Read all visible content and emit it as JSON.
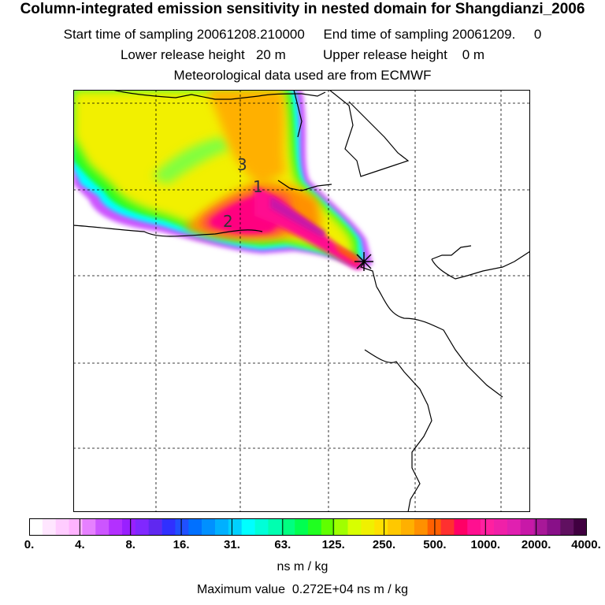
{
  "header": {
    "title": "Column-integrated emission sensitivity in nested domain for Shangdianzi_2006",
    "start_label": "Start time of sampling 20061208.210000",
    "end_label": "End time of sampling 20061209.     0",
    "lower_label": "Lower release height   20 m",
    "upper_label": "Upper release height    0 m",
    "met_label": "Meteorological data used are from ECMWF"
  },
  "map": {
    "release_marker": "cross-marker-icon",
    "position_labels": [
      "1",
      "2",
      "3"
    ]
  },
  "colorbar": {
    "tick_labels": [
      "0.",
      "4.",
      "8.",
      "16.",
      "31.",
      "63.",
      "125.",
      "250.",
      "500.",
      "1000.",
      "2000.",
      "4000."
    ],
    "colors": [
      "#ffffff",
      "#ffe6ff",
      "#ffccff",
      "#ffb3ff",
      "#e680ff",
      "#cc55ff",
      "#b330ff",
      "#9920ff",
      "#8028ff",
      "#6028f0",
      "#3030ff",
      "#2050ff",
      "#0070ff",
      "#0090ff",
      "#00b0ff",
      "#00d0ff",
      "#00ffff",
      "#00ffd8",
      "#00ffb0",
      "#00ff80",
      "#00ff50",
      "#20ff20",
      "#60ff00",
      "#a0ff00",
      "#d8ff00",
      "#f0f000",
      "#ffe000",
      "#ffc800",
      "#ffb000",
      "#ff9000",
      "#ff6000",
      "#ff3030",
      "#ff0066",
      "#ff1090",
      "#ff20a0",
      "#f020a8",
      "#e020b0",
      "#c818a8",
      "#a81898",
      "#881088",
      "#601060",
      "#400040"
    ],
    "units": "ns m / kg",
    "max_label": "Maximum value  0.272E+04 ns m / kg"
  }
}
